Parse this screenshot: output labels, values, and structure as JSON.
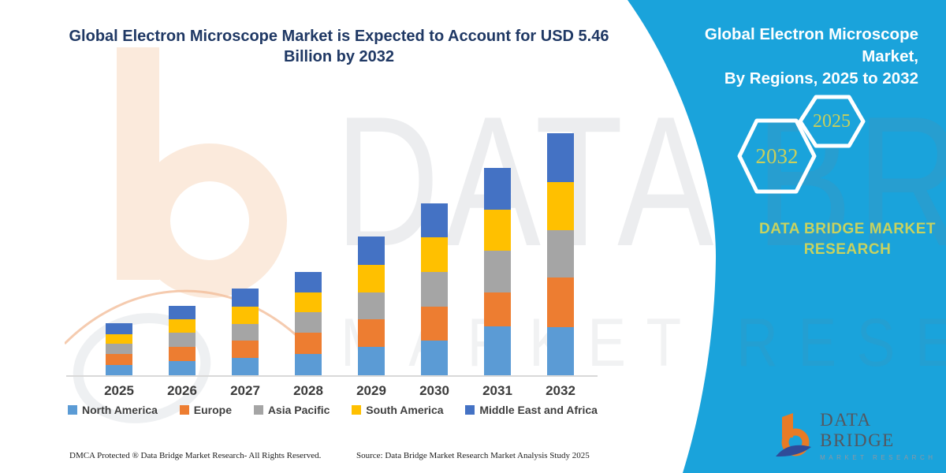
{
  "main_title": {
    "line1": "Global Electron Microscope Market is Expected to Account for USD 5.46",
    "line2": "Billion by 2032"
  },
  "right_panel": {
    "title_line1": "Global Electron Microscope Market,",
    "title_line2": "By Regions, 2025 to 2032",
    "hexagon_back": {
      "label": "2032"
    },
    "hexagon_front": {
      "label": "2025"
    },
    "brand": "DATA BRIDGE MARKET RESEARCH"
  },
  "logo": {
    "name": "DATA BRIDGE",
    "subtitle": "MARKET RESEARCH"
  },
  "watermarks": {
    "big": "DATA BRIDGE",
    "row": "MARKET RESEARCH"
  },
  "footer": {
    "dmca": "DMCA Protected ® Data Bridge Market Research-  All Rights Reserved.",
    "source": "Source: Data Bridge Market Research  Market Analysis Study 2025"
  },
  "colors": {
    "panel_cyan": "#1AA3DB",
    "title_navy": "#1F3864",
    "accent_olive": "#C8D25F",
    "axis_line": "#D9D9D9",
    "logo_orange": "#E87B25",
    "logo_navy": "#2F4B99"
  },
  "chart_data": {
    "type": "bar",
    "stacked": true,
    "title": "Global Electron Microscope Market, By Regions, 2025 to 2032",
    "units": "USD Billion (values estimated from bar heights; only the 2032 total of 5.46 is stated)",
    "categories": [
      "2025",
      "2026",
      "2027",
      "2028",
      "2029",
      "2030",
      "2031",
      "2032"
    ],
    "series": [
      {
        "name": "North America",
        "color": "#5B9BD5",
        "values": [
          0.23,
          0.32,
          0.39,
          0.48,
          0.64,
          0.79,
          1.1,
          1.09
        ]
      },
      {
        "name": "Europe",
        "color": "#ED7D31",
        "values": [
          0.25,
          0.33,
          0.39,
          0.48,
          0.62,
          0.77,
          0.78,
          1.13
        ]
      },
      {
        "name": "Asia Pacific",
        "color": "#A5A5A5",
        "values": [
          0.24,
          0.31,
          0.38,
          0.46,
          0.61,
          0.77,
          0.93,
          1.07
        ]
      },
      {
        "name": "South America",
        "color": "#FFC000",
        "values": [
          0.21,
          0.31,
          0.39,
          0.46,
          0.62,
          0.79,
          0.93,
          1.08
        ]
      },
      {
        "name": "Middle East and Africa",
        "color": "#4472C4",
        "values": [
          0.25,
          0.3,
          0.41,
          0.46,
          0.64,
          0.77,
          0.94,
          1.1
        ]
      }
    ],
    "totals": [
      1.18,
      1.57,
      1.96,
      2.34,
      3.13,
      3.89,
      4.68,
      5.46
    ],
    "xlabel": "",
    "ylabel": "",
    "value_axis_visible": false,
    "grid": false,
    "legend_position": "bottom"
  }
}
